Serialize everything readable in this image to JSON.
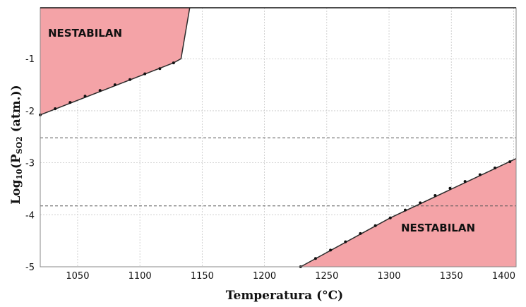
{
  "chart_data": {
    "type": "line",
    "xlabel": "Temperatura (°C)",
    "ylabel_parts": {
      "main": "Log",
      "sub1": "10",
      "mid": "(P",
      "sub2": "SO2",
      "end": " (atm.))"
    },
    "xlim": [
      1020,
      1402
    ],
    "ylim": [
      -5,
      -0.02
    ],
    "xticks": [
      1050,
      1100,
      1150,
      1200,
      1250,
      1300,
      1350,
      1400
    ],
    "yticks": [
      -1,
      -2,
      -3,
      -4,
      -5
    ],
    "grid": true,
    "series": [
      {
        "values": [
          {
            "x": 1020,
            "y": -2.08
          },
          {
            "x": 1032,
            "y": -1.96
          },
          {
            "x": 1044,
            "y": -1.84
          },
          {
            "x": 1056,
            "y": -1.72
          },
          {
            "x": 1068,
            "y": -1.61
          },
          {
            "x": 1080,
            "y": -1.5
          },
          {
            "x": 1092,
            "y": -1.4
          },
          {
            "x": 1104,
            "y": -1.29
          },
          {
            "x": 1116,
            "y": -1.19
          },
          {
            "x": 1127,
            "y": -1.08
          }
        ]
      },
      {
        "values": [
          {
            "x": 1229,
            "y": -5.0
          },
          {
            "x": 1241,
            "y": -4.84
          },
          {
            "x": 1253,
            "y": -4.68
          },
          {
            "x": 1265,
            "y": -4.52
          },
          {
            "x": 1277,
            "y": -4.36
          },
          {
            "x": 1289,
            "y": -4.21
          },
          {
            "x": 1301,
            "y": -4.06
          },
          {
            "x": 1313,
            "y": -3.91
          },
          {
            "x": 1325,
            "y": -3.77
          },
          {
            "x": 1337,
            "y": -3.63
          },
          {
            "x": 1349,
            "y": -3.49
          },
          {
            "x": 1361,
            "y": -3.36
          },
          {
            "x": 1373,
            "y": -3.23
          },
          {
            "x": 1385,
            "y": -3.1
          },
          {
            "x": 1397,
            "y": -2.98
          }
        ]
      }
    ],
    "unstable_regions": [
      {
        "label": "NESTABILAN",
        "boundary": [
          {
            "x": 1020,
            "y": -2.08
          },
          {
            "x": 1127,
            "y": -1.08
          },
          {
            "x": 1133,
            "y": -1.0
          },
          {
            "x": 1140,
            "y": -0.02
          }
        ]
      },
      {
        "label": "NESTABILAN",
        "boundary": [
          {
            "x": 1229,
            "y": -5.0
          },
          {
            "x": 1301,
            "y": -4.06
          },
          {
            "x": 1402,
            "y": -2.92
          }
        ]
      }
    ],
    "reference_lines": [
      {
        "axis": "y",
        "value": -2.52,
        "style": "dashed"
      },
      {
        "axis": "y",
        "value": -3.83,
        "style": "dashed"
      }
    ],
    "colors": {
      "region_fill": "#f4a3a7",
      "line": "#2c2c2c",
      "grid": "#c8c8c8",
      "ref_line": "#555555"
    }
  }
}
